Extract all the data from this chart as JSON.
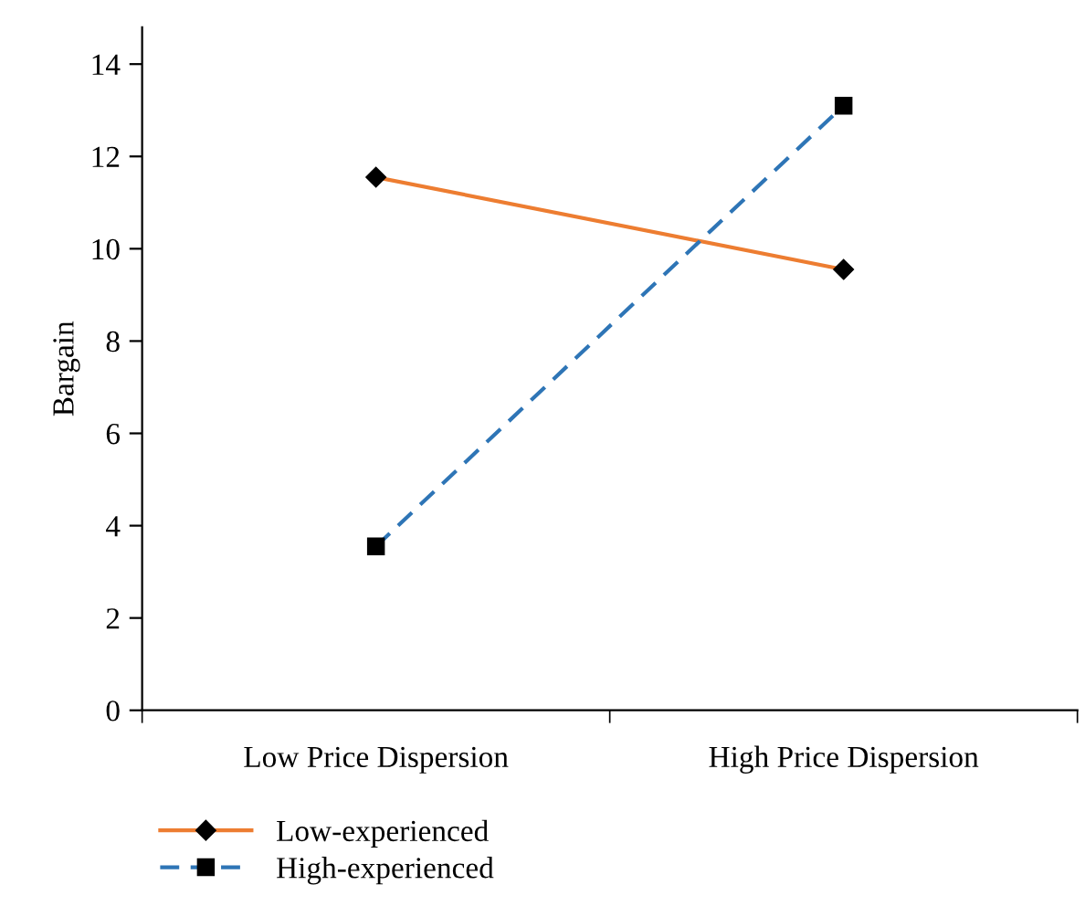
{
  "chart_data": {
    "type": "line",
    "ylabel": "Bargain",
    "categories": [
      "Low Price Dispersion",
      "High Price Dispersion"
    ],
    "series": [
      {
        "name": "Low-experienced",
        "color": "#ed7d31",
        "values": [
          11.55,
          9.55
        ],
        "marker": "diamond",
        "line_style": "solid"
      },
      {
        "name": "High-experienced",
        "color": "#2e75b6",
        "values": [
          3.55,
          13.1
        ],
        "marker": "square",
        "line_style": "dashed"
      }
    ],
    "ylim": [
      0,
      14.8
    ],
    "yticks": [
      0,
      2,
      4,
      6,
      8,
      10,
      12,
      14
    ],
    "grid": false,
    "legend": "bottom left"
  }
}
